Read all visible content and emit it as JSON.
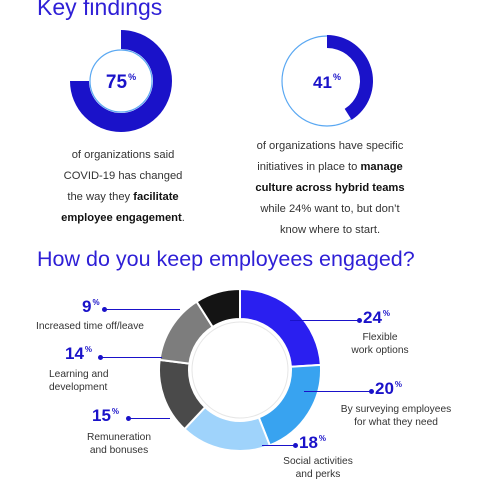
{
  "section1": {
    "title": "Key findings",
    "gauge_1": {
      "value": 75,
      "value_text": "75",
      "unit": "%",
      "line1": "of organizations said",
      "line2": "COVID-19 has changed",
      "line3_pre": "the way they ",
      "line3_bold": "facilitate",
      "line4_bold": "employee engagement",
      "line4_post": "."
    },
    "gauge_2": {
      "value": 41,
      "value_text": "41",
      "unit": "%",
      "line1": "of organizations have specific",
      "line2_pre": "initiatives in place to ",
      "line2_bold": "manage",
      "line3_bold": "culture across hybrid teams",
      "line4": "while 24% want to, but don’t",
      "line5": "know where to start."
    }
  },
  "section2": {
    "title": "How do you keep employees engaged?"
  },
  "colors": {
    "accent": "#1a12c9",
    "blue": "#2a1ff0",
    "sky": "#38a3f0",
    "light_sky": "#9fd3fb",
    "dark_gray": "#4a4a4a",
    "gray": "#7d7d7d",
    "black": "#141414"
  },
  "chart_data": {
    "type": "pie",
    "variant": "donut",
    "title": "How do you keep employees engaged?",
    "unit": "%",
    "slices": [
      {
        "label": "Flexible work options",
        "value": 24,
        "pct_text": "24",
        "label_line1": "Flexible",
        "label_line2": "work options",
        "color": "#2a1ff0"
      },
      {
        "label": "By surveying employees for what they need",
        "value": 20,
        "pct_text": "20",
        "label_line1": "By surveying employees",
        "label_line2": "for what they need",
        "color": "#38a3f0"
      },
      {
        "label": "Social activities and perks",
        "value": 18,
        "pct_text": "18",
        "label_line1": "Social activities",
        "label_line2": "and perks",
        "color": "#9fd3fb"
      },
      {
        "label": "Remuneration and bonuses",
        "value": 15,
        "pct_text": "15",
        "label_line1": "Remuneration",
        "label_line2": "and bonuses",
        "color": "#4a4a4a"
      },
      {
        "label": "Learning and development",
        "value": 14,
        "pct_text": "14",
        "label_line1": "Learning and",
        "label_line2": "development",
        "color": "#7d7d7d"
      },
      {
        "label": "Increased time off/leave",
        "value": 9,
        "pct_text": "9",
        "label_line1": "Increased time off/leave",
        "label_line2": "",
        "color": "#141414"
      }
    ]
  }
}
